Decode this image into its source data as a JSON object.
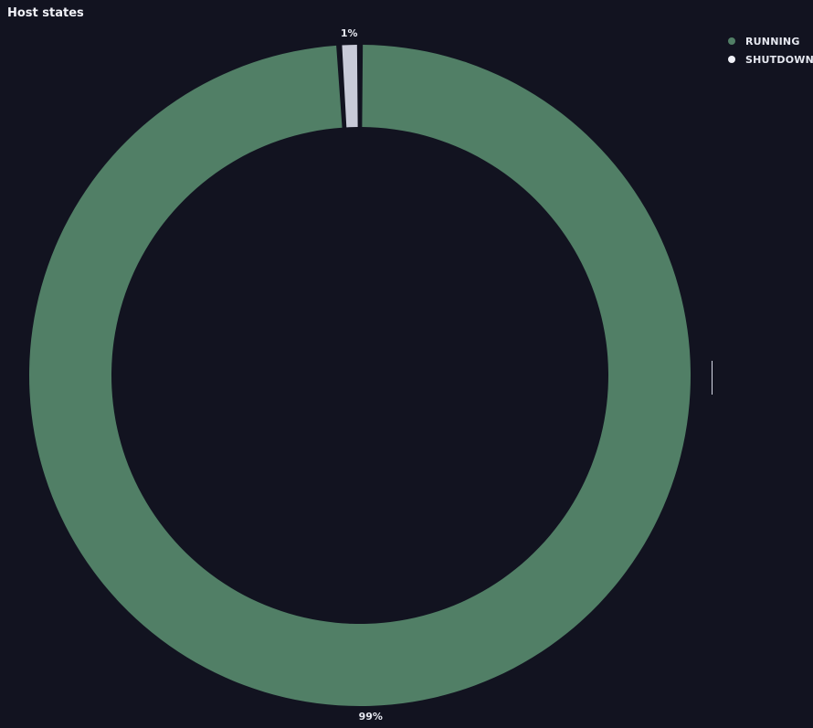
{
  "panel": {
    "title": "Host states"
  },
  "chart_data": {
    "type": "pie",
    "donut": true,
    "legend_position": "top-right",
    "series": [
      {
        "name": "RUNNING",
        "value": 99,
        "label": "99%",
        "color": "#517f66"
      },
      {
        "name": "SHUTDOWN",
        "value": 1,
        "label": "1%",
        "color": "#c8cad8"
      }
    ]
  }
}
